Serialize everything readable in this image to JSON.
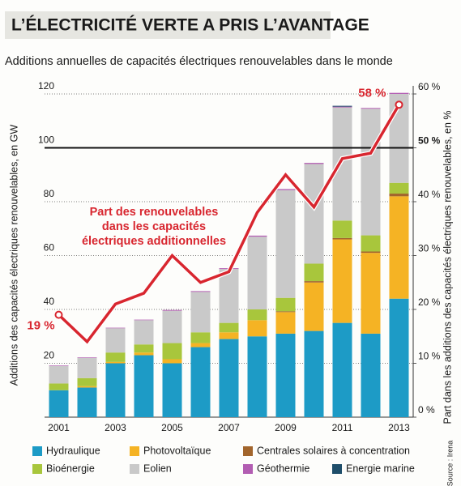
{
  "chart_data": {
    "type": "bar",
    "stacked": true,
    "title": "L’ÉLECTRICITÉ VERTE A PRIS L’AVANTAGE",
    "subtitle": "Additions annuelles de capacités électriques renouvelables dans le monde",
    "y_label": "Additions des capacités électriques renouvelables, en GW",
    "y2_label": "Part dans les additions des capacités électriques renouvelables, en %",
    "source": "Source : Irena",
    "annotation": [
      "Part des renouvelables",
      "dans les capacités",
      "électriques additionnelles"
    ],
    "categories": [
      "2001",
      null,
      "2003",
      null,
      "2005",
      null,
      "2007",
      null,
      "2009",
      null,
      "2011",
      null,
      "2013"
    ],
    "ylim": [
      0,
      120
    ],
    "yticks": [
      0,
      20,
      40,
      60,
      80,
      100,
      120
    ],
    "y2lim": [
      0,
      60
    ],
    "y2ticks": [
      {
        "value": 0,
        "label": "0 %"
      },
      {
        "value": 10,
        "label": "10 %"
      },
      {
        "value": 20,
        "label": "20 %"
      },
      {
        "value": 30,
        "label": "30 %"
      },
      {
        "value": 40,
        "label": "40 %"
      },
      {
        "value": 50,
        "label": "50 %"
      },
      {
        "value": 60,
        "label": "60 %"
      }
    ],
    "hline": {
      "value": 50,
      "axis": "y2",
      "color": "#111111"
    },
    "grid": true,
    "series": [
      {
        "name": "Hydraulique",
        "color": "#1d9bc6",
        "values": [
          10,
          11,
          20,
          23,
          20,
          26,
          29,
          30,
          31,
          32,
          35,
          31,
          44
        ]
      },
      {
        "name": "Photovoltaïque",
        "color": "#f5b324",
        "values": [
          0,
          0.5,
          0.5,
          1,
          1.5,
          1.5,
          2.5,
          6,
          8,
          18,
          31,
          30,
          38
        ]
      },
      {
        "name": "Centrales solaires à concentration",
        "color": "#a2652c",
        "values": [
          0,
          0,
          0,
          0,
          0,
          0,
          0,
          0,
          0.3,
          0.5,
          0.5,
          0.5,
          1
        ]
      },
      {
        "name": "Bioénergie",
        "color": "#a8c63c",
        "values": [
          2.5,
          3,
          3.5,
          3,
          6,
          4,
          3.5,
          4,
          5,
          6.5,
          6.5,
          6,
          4
        ]
      },
      {
        "name": "Eolien",
        "color": "#c9c9c9",
        "values": [
          6.5,
          7.5,
          9,
          9,
          12,
          15,
          20,
          27,
          40,
          37,
          42,
          47,
          33
        ]
      },
      {
        "name": "Géothermie",
        "color": "#b25db2",
        "values": [
          0.2,
          0.2,
          0.2,
          0.2,
          0.3,
          0.3,
          0.3,
          0.4,
          0.4,
          0.4,
          0.3,
          0.3,
          0.4
        ]
      },
      {
        "name": "Energie marine",
        "color": "#1f4e6a",
        "values": [
          0,
          0,
          0,
          0,
          0,
          0,
          0,
          0,
          0,
          0,
          0.3,
          0,
          0
        ]
      },
      {
        "name": "Part",
        "type": "line",
        "axis": "y2",
        "color": "#d8262f",
        "values": [
          19,
          14,
          21,
          23,
          30,
          25,
          27,
          38,
          45,
          39,
          48,
          49,
          58
        ],
        "value_labels": [
          "19 %",
          null,
          null,
          null,
          null,
          null,
          null,
          null,
          null,
          null,
          null,
          null,
          "58 %"
        ]
      }
    ]
  }
}
